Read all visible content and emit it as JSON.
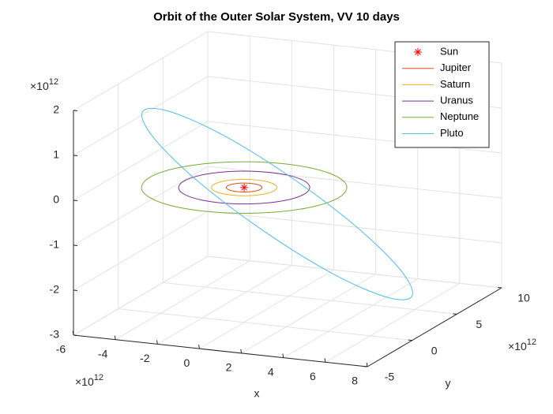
{
  "chart_data": {
    "type": "line3d",
    "title": "Orbit of the Outer Solar System, VV 10 days",
    "xlabel": "x",
    "ylabel": "y",
    "x_exponent": {
      "base": "×10",
      "power": "12"
    },
    "y_exponent": {
      "base": "×10",
      "power": "12"
    },
    "z_exponent": {
      "base": "×10",
      "power": "12"
    },
    "xlim": [
      -6,
      8
    ],
    "xticks": [
      -6,
      -4,
      -2,
      0,
      2,
      4,
      6,
      8
    ],
    "ylim": [
      -5,
      10
    ],
    "yticks": [
      -5,
      0,
      5,
      10
    ],
    "zlim": [
      -3,
      2
    ],
    "zticks": [
      -3,
      -2,
      -1,
      0,
      1,
      2
    ],
    "grid": true,
    "legend": "northeast",
    "series": [
      {
        "name": "Sun",
        "color": "#ff0000",
        "marker": "*",
        "x": [
          0
        ],
        "y": [
          0
        ],
        "z": [
          0
        ]
      },
      {
        "name": "Jupiter",
        "color": "#d95319",
        "x": [
          0.78,
          0.68,
          0.39,
          0,
          -0.39,
          -0.68,
          -0.78,
          -0.68,
          -0.39,
          0,
          0.39,
          0.68
        ],
        "y": [
          0,
          0.39,
          0.68,
          0.78,
          0.68,
          0.39,
          0,
          -0.39,
          -0.68,
          -0.78,
          -0.68,
          -0.39
        ],
        "z": [
          0,
          0,
          0,
          0,
          0,
          0,
          0,
          0,
          0,
          0,
          0,
          0
        ]
      },
      {
        "name": "Saturn",
        "color": "#edb120",
        "x": [
          1.43,
          1.24,
          0.72,
          0,
          -0.72,
          -1.24,
          -1.43,
          -1.24,
          -0.72,
          0,
          0.72,
          1.24
        ],
        "y": [
          0,
          0.72,
          1.24,
          1.43,
          1.24,
          0.72,
          0,
          -0.72,
          -1.24,
          -1.43,
          -1.24,
          -0.72
        ],
        "z": [
          0,
          0,
          0,
          0,
          0,
          0,
          0,
          0,
          0,
          0,
          0,
          0
        ]
      },
      {
        "name": "Uranus",
        "color": "#7e2f8e",
        "x": [
          2.87,
          2.49,
          1.44,
          0,
          -1.44,
          -2.49,
          -2.87,
          -2.49,
          -1.44,
          0,
          1.44,
          2.49
        ],
        "y": [
          0,
          1.44,
          2.49,
          2.87,
          2.49,
          1.44,
          0,
          -1.44,
          -2.49,
          -2.87,
          -2.49,
          -1.44
        ],
        "z": [
          0,
          0,
          0,
          0,
          0,
          0,
          0,
          0,
          0,
          0,
          0,
          0
        ]
      },
      {
        "name": "Neptune",
        "color": "#77ac30",
        "x": [
          4.5,
          3.9,
          2.25,
          0,
          -2.25,
          -3.9,
          -4.5,
          -3.9,
          -2.25,
          0,
          2.25,
          3.9
        ],
        "y": [
          0,
          2.25,
          3.9,
          4.5,
          3.9,
          2.25,
          0,
          -2.25,
          -3.9,
          -4.5,
          -3.9,
          -2.25
        ],
        "z": [
          0,
          0,
          0,
          0,
          0,
          0,
          0,
          0,
          0,
          0,
          0,
          0
        ]
      },
      {
        "name": "Pluto",
        "color": "#4dbeee",
        "x": [
          6.5,
          5.9,
          4.25,
          2,
          -0.25,
          -1.9,
          -2.5,
          -1.9,
          -0.25,
          2,
          4.25,
          5.9
        ],
        "y": [
          3.5,
          3.7,
          2.64,
          0.6,
          -1.86,
          -4.1,
          -5.5,
          -5.7,
          -4.64,
          -2.6,
          -0.14,
          2.1
        ],
        "z": [
          -2.5,
          -1.99,
          -0.98,
          0.25,
          1.38,
          2.09,
          2.2,
          1.69,
          0.68,
          -0.55,
          -1.68,
          -2.39
        ]
      }
    ]
  }
}
